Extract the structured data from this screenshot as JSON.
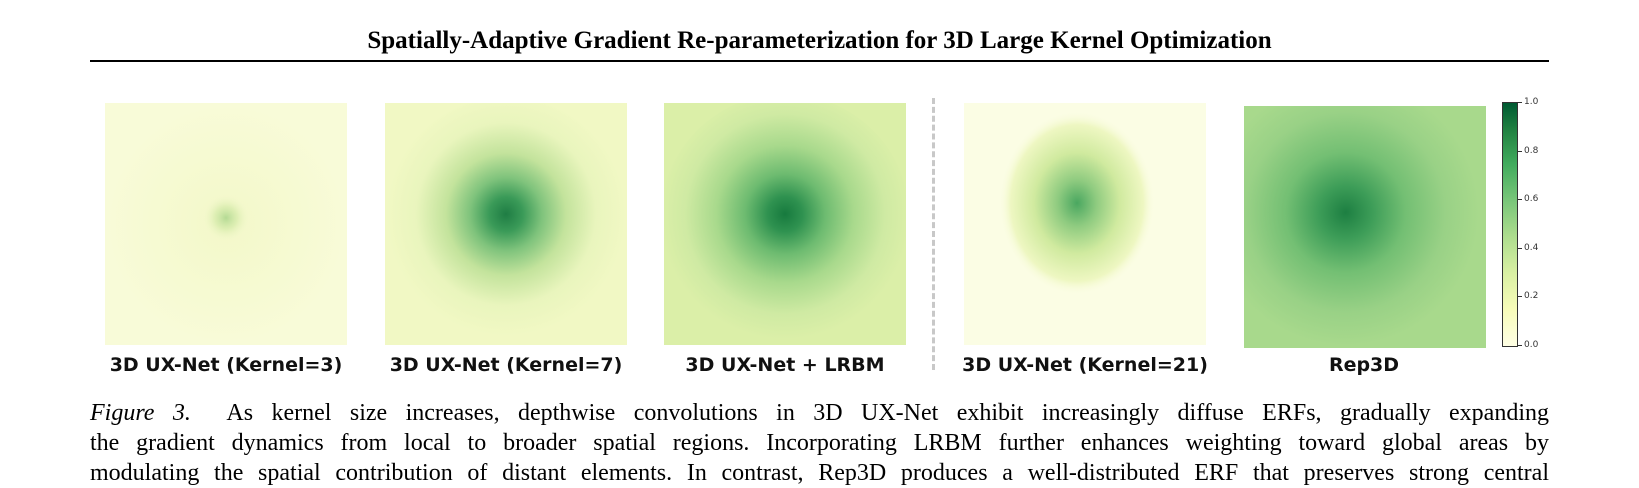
{
  "header": {
    "title": "Spatially-Adaptive Gradient Re-parameterization for 3D Large Kernel Optimization"
  },
  "figure": {
    "panels": [
      {
        "label": "3D UX-Net (Kernel=3)",
        "base_color": "#f5f9d0",
        "blob_color": "#b6da93"
      },
      {
        "label": "3D UX-Net (Kernel=7)",
        "base_color": "#f1f8c4",
        "blob_color": "#2e8b50"
      },
      {
        "label": "3D UX-Net + LRBM",
        "base_color": "#dbefa8",
        "blob_color": "#238443"
      },
      {
        "label": "3D UX-Net (Kernel=21)",
        "base_color": "#fbfde4",
        "blob_color": "#5fb56e"
      },
      {
        "label": "Rep3D",
        "base_color": "#a8d98c",
        "blob_color": "#2a8b4a"
      }
    ],
    "colorbar": {
      "ticks": [
        "1.0",
        "0.8",
        "0.6",
        "0.4",
        "0.2",
        "0.0"
      ]
    }
  },
  "caption": {
    "label": "Figure 3.",
    "line1": "As kernel size increases, depthwise convolutions in 3D UX-Net exhibit increasingly diffuse ERFs, gradually expanding",
    "line2": "the gradient dynamics from local to broader spatial regions. Incorporating LRBM further enhances weighting toward global areas by",
    "line3": "modulating the spatial contribution of distant elements. In contrast, Rep3D produces a well-distributed ERF that preserves strong central"
  }
}
